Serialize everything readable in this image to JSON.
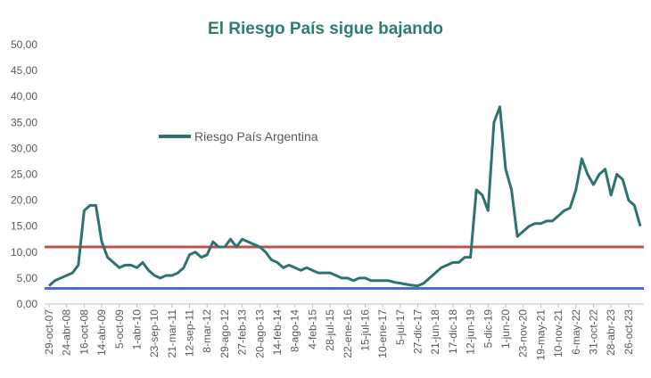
{
  "chart_data": {
    "type": "line",
    "title": "El Riesgo País sigue bajando",
    "categories": [
      "29-oct-07",
      null,
      null,
      "24-abr-08",
      null,
      null,
      "16-oct-08",
      null,
      null,
      "14-abr-09",
      null,
      null,
      "5-oct-09",
      null,
      null,
      "1-abr-10",
      null,
      null,
      "23-sep-10",
      null,
      null,
      "21-mar-11",
      null,
      null,
      "12-sep-11",
      null,
      null,
      "8-mar-12",
      null,
      null,
      "29-ago-12",
      null,
      null,
      "27-feb-13",
      null,
      null,
      "20-ago-13",
      null,
      null,
      "14-feb-14",
      null,
      null,
      "8-ago-14",
      null,
      null,
      "4-feb-15",
      null,
      null,
      "28-jul-15",
      null,
      null,
      "22-ene-16",
      null,
      null,
      "15-jul-16",
      null,
      null,
      "10-ene-17",
      null,
      null,
      "5-jul-17",
      null,
      null,
      "27-dic-17",
      null,
      null,
      "21-jun-18",
      null,
      null,
      "17-dic-18",
      null,
      null,
      "12-jun-19",
      null,
      null,
      "5-dic-19",
      null,
      null,
      "1-jun-20",
      null,
      null,
      "23-nov-20",
      null,
      null,
      "19-may-21",
      null,
      null,
      "10-nov-21",
      null,
      null,
      "6-may-22",
      null,
      null,
      "31-oct-22",
      null,
      null,
      "28-abr-23",
      null,
      null,
      "26-oct-23",
      null,
      null
    ],
    "series": [
      {
        "name": "Riesgo País Argentina",
        "color": "#2f7370",
        "values": [
          3.5,
          4.5,
          5,
          5.5,
          6,
          7.5,
          18,
          19,
          19,
          12,
          9,
          8,
          7,
          7.5,
          7.5,
          7,
          8,
          6.5,
          5.5,
          5,
          5.5,
          5.5,
          6,
          7,
          9.5,
          10,
          9,
          9.5,
          12,
          11,
          11,
          12.5,
          11,
          12.5,
          12,
          11.5,
          11,
          10,
          8.5,
          8,
          7,
          7.5,
          7,
          6.5,
          7,
          6.5,
          6,
          6,
          6,
          5.5,
          5,
          5,
          4.5,
          5,
          5,
          4.5,
          4.5,
          4.5,
          4.5,
          4.2,
          4,
          3.8,
          3.6,
          3.5,
          4,
          5,
          6,
          7,
          7.5,
          8,
          8,
          9,
          9,
          22,
          21,
          18,
          35,
          38,
          26,
          22,
          13,
          14,
          15,
          15.5,
          15.5,
          16,
          16,
          17,
          18,
          18.5,
          22,
          28,
          25,
          23,
          25,
          26,
          21,
          25,
          24,
          20,
          19,
          15
        ]
      }
    ],
    "reference_lines": [
      {
        "value": 11,
        "color": "#c0504d"
      },
      {
        "value": 3,
        "color": "#4472c4"
      }
    ],
    "ylim": [
      0,
      50
    ],
    "yticks": [
      {
        "value": 0,
        "label": "0,00"
      },
      {
        "value": 5,
        "label": "5,00"
      },
      {
        "value": 10,
        "label": "10,00"
      },
      {
        "value": 15,
        "label": "15,00"
      },
      {
        "value": 20,
        "label": "20,00"
      },
      {
        "value": 25,
        "label": "25,00"
      },
      {
        "value": 30,
        "label": "30,00"
      },
      {
        "value": 35,
        "label": "35,00"
      },
      {
        "value": 40,
        "label": "40,00"
      },
      {
        "value": 45,
        "label": "45,00"
      },
      {
        "value": 50,
        "label": "50,00"
      }
    ],
    "legend": "top-left"
  }
}
